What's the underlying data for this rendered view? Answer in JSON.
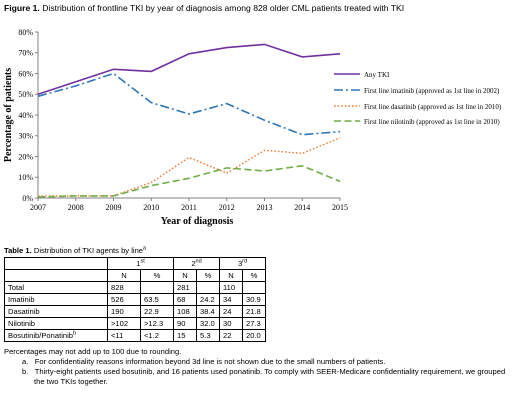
{
  "figure": {
    "label": "Figure 1.",
    "caption": "Distribution of frontline TKI by year of diagnosis among 828 older CML patients treated with TKI"
  },
  "chart_data": {
    "type": "line",
    "title": "",
    "xlabel": "Year of diagnosis",
    "ylabel": "Percentage of patients",
    "x": [
      2007,
      2008,
      2009,
      2010,
      2011,
      2012,
      2013,
      2014,
      2015
    ],
    "x_ticks": [
      "2007",
      "2008",
      "2009",
      "2010",
      "2011",
      "2012",
      "2013",
      "2014",
      "2015"
    ],
    "y_ticks": [
      "0%",
      "10%",
      "20%",
      "30%",
      "40%",
      "50%",
      "60%",
      "70%",
      "80%"
    ],
    "ylim": [
      0,
      80
    ],
    "grid": false,
    "legend_position": "right",
    "series": [
      {
        "name": "Any TKI",
        "values": [
          50,
          56,
          62,
          61,
          69.5,
          72.5,
          74,
          68,
          69.5
        ],
        "color": "#7030a0",
        "style": "solid"
      },
      {
        "name": "First line imatinib (approved as 1st line in 2002)",
        "values": [
          49,
          54,
          60,
          46,
          40.5,
          45.5,
          37.5,
          30.5,
          32
        ],
        "color": "#2e75b6",
        "style": "dashdot"
      },
      {
        "name": "First line dasatinib (approved as 1st line in 2010)",
        "values": [
          1,
          1,
          1,
          7.5,
          19.5,
          12,
          23,
          21.5,
          29
        ],
        "color": "#ed7d31",
        "style": "dotted"
      },
      {
        "name": "First line nilotinib  (approved as 1st line in 2010)",
        "values": [
          0.5,
          1,
          1,
          6,
          9.5,
          14.5,
          13,
          15.5,
          8
        ],
        "color": "#70ad47",
        "style": "dashed"
      }
    ]
  },
  "table": {
    "label": "Table 1.",
    "caption": "Distribution of TKI agents by line",
    "caption_sup": "a",
    "lines": [
      {
        "num": "1",
        "sup": "st"
      },
      {
        "num": "2",
        "sup": "nd"
      },
      {
        "num": "3",
        "sup": "rd"
      }
    ],
    "subheaders": [
      "N",
      "%",
      "N",
      "%",
      "N",
      "%"
    ],
    "rows": [
      {
        "name": "Total",
        "sup": "",
        "cells": [
          "828",
          "",
          "281",
          "",
          "110",
          ""
        ]
      },
      {
        "name": "Imatinib",
        "sup": "",
        "cells": [
          "526",
          "63.5",
          "68",
          "24.2",
          "34",
          "30.9"
        ]
      },
      {
        "name": "Dasatinib",
        "sup": "",
        "cells": [
          "190",
          "22.9",
          "108",
          "38.4",
          "24",
          "21.8"
        ]
      },
      {
        "name": "Nilotinib",
        "sup": "",
        "cells": [
          ">102",
          ">12.3",
          "90",
          "32.0",
          "30",
          "27.3"
        ]
      },
      {
        "name": "Bosutinib/Ponatinib",
        "sup": "b",
        "cells": [
          "<11",
          "<1.2",
          "15",
          "5.3",
          "22",
          "20.0"
        ]
      }
    ]
  },
  "notes": {
    "intro": "Percentages may not add up to 100 due to rounding.",
    "footnotes": [
      {
        "mark": "a.",
        "text": "For confidentiality reasons information beyond 3d line is not shown due to the small numbers of patients."
      },
      {
        "mark": "b.",
        "text": "Thirty-eight patients used bosutinib, and 16 patients used ponatinib. To comply with SEER-Medicare confidentiality requirement, we grouped the two TKIs together."
      }
    ]
  }
}
